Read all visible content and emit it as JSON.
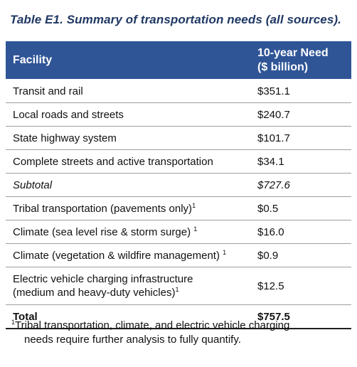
{
  "title": "Table E1. Summary of transportation needs (all sources).",
  "header": {
    "facility": "Facility",
    "need_line1": "10-year Need",
    "need_line2": "($ billion)"
  },
  "rows": [
    {
      "facility": "Transit and rail",
      "need": "$351.1"
    },
    {
      "facility": "Local roads and streets",
      "need": "$240.7"
    },
    {
      "facility": "State highway system",
      "need": "$101.7"
    },
    {
      "facility": "Complete streets and active transportation",
      "need": "$34.1"
    },
    {
      "facility": "Subtotal",
      "need": "$727.6"
    },
    {
      "facility": "Tribal transportation (pavements only)",
      "sup": "1",
      "need": "$0.5"
    },
    {
      "facility": "Climate (sea level rise & storm surge)",
      "sup": "1",
      "need": "$16.0"
    },
    {
      "facility": "Climate (vegetation & wildfire management)",
      "sup": "1",
      "need": "$0.9"
    },
    {
      "facility_line1": "Electric vehicle charging infrastructure",
      "facility_line2": "(medium and heavy-duty vehicles)",
      "sup": "1",
      "need": "$12.5"
    },
    {
      "facility": "Total",
      "need": "$757.5"
    }
  ],
  "footnote": {
    "marker": "1",
    "line1": "Tribal transportation, climate, and electric vehicle charging",
    "line2": "needs require further analysis to fully quantify."
  },
  "colors": {
    "header_bg": "#2f5597",
    "title": "#1f3864"
  }
}
